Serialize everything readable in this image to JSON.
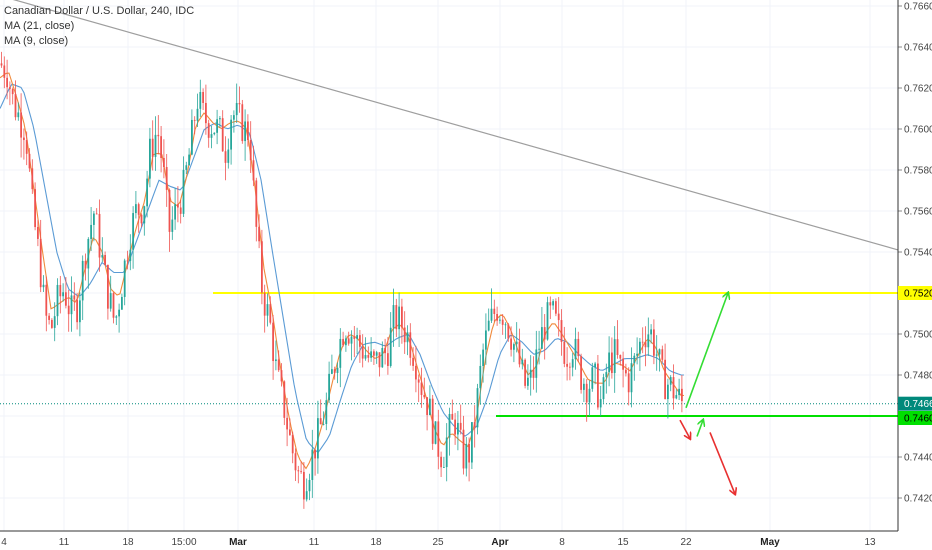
{
  "legend": {
    "title": "Canadian Dollar / U.S. Dollar, 240, IDC",
    "ma1": "MA (21, close)",
    "ma2": "MA (9, close)"
  },
  "colors": {
    "bull": "#26a69a",
    "bear": "#ef5350",
    "ma21": "#5b9bd5",
    "ma9": "#f08a3c",
    "resistance": "#ffff00",
    "support": "#00e000",
    "trendline": "#9e9e9e",
    "arrow_up": "#33dd33",
    "arrow_down": "#e83030",
    "current": "#00897b"
  },
  "chart_data": {
    "type": "candlestick",
    "title": "Canadian Dollar / U.S. Dollar, 240, IDC",
    "x_ticks": [
      {
        "label": "4",
        "bold": false
      },
      {
        "label": "11",
        "bold": false
      },
      {
        "label": "18",
        "bold": false
      },
      {
        "label": "15:00",
        "bold": false
      },
      {
        "label": "Mar",
        "bold": true
      },
      {
        "label": "11",
        "bold": false
      },
      {
        "label": "18",
        "bold": false
      },
      {
        "label": "25",
        "bold": false
      },
      {
        "label": "Apr",
        "bold": true
      },
      {
        "label": "8",
        "bold": false
      },
      {
        "label": "15",
        "bold": false
      },
      {
        "label": "22",
        "bold": false
      },
      {
        "label": "May",
        "bold": true
      },
      {
        "label": "13",
        "bold": false
      }
    ],
    "y_ticks": [
      "0.7660",
      "0.7640",
      "0.7620",
      "0.7600",
      "0.7580",
      "0.7560",
      "0.7540",
      "0.7520",
      "0.7500",
      "0.7480",
      "0.7460",
      "0.7440",
      "0.7420"
    ],
    "y_range": [
      0.741,
      0.7668
    ],
    "close_path": [
      [
        0,
        0.7632
      ],
      [
        5,
        0.7628
      ],
      [
        9,
        0.7614
      ],
      [
        14,
        0.7605
      ],
      [
        18,
        0.76
      ],
      [
        23,
        0.756
      ],
      [
        28,
        0.7535
      ],
      [
        32,
        0.7508
      ],
      [
        36,
        0.7502
      ],
      [
        40,
        0.7515
      ],
      [
        45,
        0.7522
      ],
      [
        50,
        0.751
      ],
      [
        55,
        0.7515
      ],
      [
        60,
        0.754
      ],
      [
        66,
        0.756
      ],
      [
        71,
        0.754
      ],
      [
        76,
        0.752
      ],
      [
        81,
        0.7505
      ],
      [
        86,
        0.7525
      ],
      [
        91,
        0.7548
      ],
      [
        96,
        0.756
      ],
      [
        101,
        0.7562
      ],
      [
        106,
        0.759
      ],
      [
        111,
        0.76
      ],
      [
        115,
        0.758
      ],
      [
        119,
        0.755
      ],
      [
        124,
        0.756
      ],
      [
        129,
        0.757
      ],
      [
        134,
        0.759
      ],
      [
        139,
        0.7615
      ],
      [
        144,
        0.7605
      ],
      [
        149,
        0.7602
      ],
      [
        154,
        0.76
      ],
      [
        159,
        0.759
      ],
      [
        163,
        0.7608
      ],
      [
        168,
        0.7605
      ],
      [
        172,
        0.76
      ],
      [
        176,
        0.7598
      ],
      [
        180,
        0.7555
      ],
      [
        185,
        0.752
      ],
      [
        190,
        0.7506
      ],
      [
        195,
        0.748
      ],
      [
        200,
        0.7465
      ],
      [
        205,
        0.7446
      ],
      [
        210,
        0.7432
      ],
      [
        214,
        0.7428
      ],
      [
        219,
        0.7438
      ],
      [
        224,
        0.745
      ],
      [
        229,
        0.7462
      ],
      [
        234,
        0.748
      ],
      [
        239,
        0.7495
      ],
      [
        243,
        0.7505
      ],
      [
        248,
        0.75
      ],
      [
        253,
        0.7495
      ],
      [
        258,
        0.749
      ],
      [
        263,
        0.7485
      ],
      [
        268,
        0.7488
      ],
      [
        273,
        0.7492
      ],
      [
        278,
        0.7508
      ],
      [
        283,
        0.7505
      ],
      [
        288,
        0.7498
      ],
      [
        292,
        0.749
      ],
      [
        297,
        0.7475
      ],
      [
        302,
        0.7465
      ],
      [
        307,
        0.7448
      ],
      [
        312,
        0.744
      ],
      [
        316,
        0.7452
      ],
      [
        321,
        0.7458
      ],
      [
        326,
        0.744
      ],
      [
        331,
        0.7442
      ],
      [
        335,
        0.746
      ],
      [
        340,
        0.749
      ],
      [
        345,
        0.7505
      ],
      [
        350,
        0.7513
      ],
      [
        355,
        0.751
      ],
      [
        360,
        0.75
      ],
      [
        365,
        0.7488
      ],
      [
        370,
        0.7475
      ],
      [
        375,
        0.7478
      ],
      [
        380,
        0.7495
      ],
      [
        384,
        0.7505
      ],
      [
        389,
        0.751
      ],
      [
        394,
        0.75
      ],
      [
        399,
        0.749
      ],
      [
        404,
        0.7495
      ],
      [
        409,
        0.748
      ],
      [
        414,
        0.7475
      ],
      [
        419,
        0.7478
      ],
      [
        424,
        0.7465
      ],
      [
        428,
        0.7485
      ],
      [
        433,
        0.749
      ],
      [
        438,
        0.7482
      ],
      [
        443,
        0.7478
      ],
      [
        448,
        0.7488
      ],
      [
        453,
        0.75
      ],
      [
        458,
        0.7502
      ],
      [
        463,
        0.749
      ],
      [
        467,
        0.7478
      ],
      [
        472,
        0.7475
      ],
      [
        477,
        0.747
      ],
      [
        482,
        0.7465
      ]
    ],
    "ma21_path": [
      [
        0,
        0.761
      ],
      [
        8,
        0.7622
      ],
      [
        16,
        0.762
      ],
      [
        24,
        0.76
      ],
      [
        32,
        0.757
      ],
      [
        40,
        0.754
      ],
      [
        48,
        0.7522
      ],
      [
        56,
        0.7518
      ],
      [
        64,
        0.7525
      ],
      [
        72,
        0.7535
      ],
      [
        80,
        0.753
      ],
      [
        88,
        0.753
      ],
      [
        96,
        0.7545
      ],
      [
        104,
        0.756
      ],
      [
        112,
        0.7575
      ],
      [
        120,
        0.7572
      ],
      [
        128,
        0.757
      ],
      [
        136,
        0.7585
      ],
      [
        144,
        0.76
      ],
      [
        152,
        0.7603
      ],
      [
        160,
        0.76
      ],
      [
        168,
        0.7602
      ],
      [
        176,
        0.7598
      ],
      [
        184,
        0.7575
      ],
      [
        192,
        0.754
      ],
      [
        200,
        0.7506
      ],
      [
        208,
        0.7472
      ],
      [
        216,
        0.7448
      ],
      [
        224,
        0.7442
      ],
      [
        232,
        0.745
      ],
      [
        240,
        0.7468
      ],
      [
        248,
        0.7485
      ],
      [
        256,
        0.7495
      ],
      [
        264,
        0.7496
      ],
      [
        272,
        0.7494
      ],
      [
        280,
        0.7498
      ],
      [
        288,
        0.75
      ],
      [
        296,
        0.749
      ],
      [
        304,
        0.7475
      ],
      [
        312,
        0.7462
      ],
      [
        320,
        0.7455
      ],
      [
        328,
        0.745
      ],
      [
        336,
        0.7455
      ],
      [
        344,
        0.747
      ],
      [
        352,
        0.749
      ],
      [
        360,
        0.75
      ],
      [
        368,
        0.7496
      ],
      [
        376,
        0.749
      ],
      [
        384,
        0.7492
      ],
      [
        392,
        0.7498
      ],
      [
        400,
        0.7496
      ],
      [
        408,
        0.749
      ],
      [
        416,
        0.7485
      ],
      [
        424,
        0.7482
      ],
      [
        432,
        0.7485
      ],
      [
        440,
        0.7488
      ],
      [
        448,
        0.7488
      ],
      [
        456,
        0.749
      ],
      [
        464,
        0.7488
      ],
      [
        472,
        0.7482
      ],
      [
        480,
        0.748
      ]
    ],
    "ma9_path": [
      [
        0,
        0.7625
      ],
      [
        6,
        0.7628
      ],
      [
        12,
        0.7615
      ],
      [
        18,
        0.76
      ],
      [
        24,
        0.757
      ],
      [
        30,
        0.754
      ],
      [
        36,
        0.7512
      ],
      [
        42,
        0.7515
      ],
      [
        48,
        0.7518
      ],
      [
        54,
        0.7515
      ],
      [
        60,
        0.7532
      ],
      [
        66,
        0.7548
      ],
      [
        72,
        0.754
      ],
      [
        78,
        0.7522
      ],
      [
        84,
        0.7518
      ],
      [
        90,
        0.7535
      ],
      [
        96,
        0.7552
      ],
      [
        102,
        0.7565
      ],
      [
        108,
        0.7588
      ],
      [
        114,
        0.7588
      ],
      [
        120,
        0.7565
      ],
      [
        126,
        0.7562
      ],
      [
        132,
        0.7578
      ],
      [
        138,
        0.7602
      ],
      [
        144,
        0.7608
      ],
      [
        150,
        0.7603
      ],
      [
        156,
        0.76
      ],
      [
        162,
        0.7603
      ],
      [
        168,
        0.7604
      ],
      [
        174,
        0.76
      ],
      [
        180,
        0.757
      ],
      [
        186,
        0.7532
      ],
      [
        192,
        0.751
      ],
      [
        198,
        0.7482
      ],
      [
        204,
        0.7458
      ],
      [
        210,
        0.744
      ],
      [
        216,
        0.7434
      ],
      [
        222,
        0.7444
      ],
      [
        228,
        0.7458
      ],
      [
        234,
        0.7476
      ],
      [
        240,
        0.7492
      ],
      [
        246,
        0.75
      ],
      [
        252,
        0.7498
      ],
      [
        258,
        0.7492
      ],
      [
        264,
        0.7488
      ],
      [
        270,
        0.749
      ],
      [
        276,
        0.7502
      ],
      [
        282,
        0.7505
      ],
      [
        288,
        0.7498
      ],
      [
        294,
        0.7484
      ],
      [
        300,
        0.747
      ],
      [
        306,
        0.7454
      ],
      [
        312,
        0.7445
      ],
      [
        318,
        0.7452
      ],
      [
        324,
        0.7448
      ],
      [
        330,
        0.7445
      ],
      [
        336,
        0.746
      ],
      [
        342,
        0.7488
      ],
      [
        348,
        0.7506
      ],
      [
        354,
        0.751
      ],
      [
        360,
        0.7502
      ],
      [
        366,
        0.749
      ],
      [
        372,
        0.748
      ],
      [
        378,
        0.7484
      ],
      [
        384,
        0.75
      ],
      [
        390,
        0.7506
      ],
      [
        396,
        0.75
      ],
      [
        402,
        0.7493
      ],
      [
        408,
        0.7486
      ],
      [
        414,
        0.7478
      ],
      [
        420,
        0.7476
      ],
      [
        426,
        0.7476
      ],
      [
        432,
        0.7486
      ],
      [
        438,
        0.7485
      ],
      [
        444,
        0.7482
      ],
      [
        450,
        0.749
      ],
      [
        456,
        0.7498
      ],
      [
        462,
        0.7494
      ],
      [
        468,
        0.7482
      ],
      [
        474,
        0.7476
      ],
      [
        480,
        0.747
      ]
    ],
    "resistance_level": 0.752,
    "resistance_label": "0.7520",
    "support_level": 0.746,
    "support_label": "0.7460",
    "current_price": 0.7466,
    "current_label": "0.7466",
    "trendline": [
      [
        0,
        0.7665
      ],
      [
        898,
        0.7541
      ]
    ],
    "arrows": [
      {
        "type": "up",
        "points": [
          [
            686,
            0.7464
          ],
          [
            728,
            0.752
          ]
        ]
      },
      {
        "type": "down_short",
        "points": [
          [
            680,
            0.7458
          ],
          [
            690,
            0.7449
          ]
        ]
      },
      {
        "type": "up_short",
        "points": [
          [
            697,
            0.745
          ],
          [
            703,
            0.7458
          ]
        ]
      },
      {
        "type": "down",
        "points": [
          [
            710,
            0.7452
          ],
          [
            735,
            0.7422
          ]
        ]
      }
    ]
  }
}
